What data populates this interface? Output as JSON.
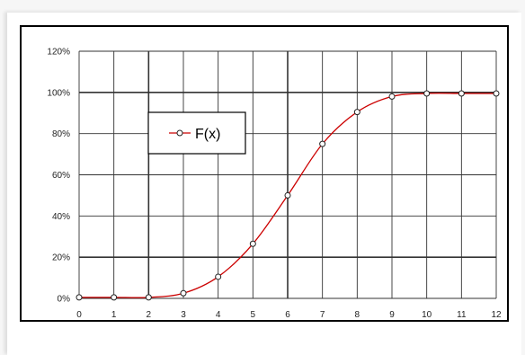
{
  "chart_data": {
    "type": "line",
    "x": [
      0,
      1,
      2,
      3,
      4,
      5,
      6,
      7,
      8,
      9,
      10,
      11,
      12
    ],
    "series": [
      {
        "name": "F(x)",
        "values": [
          0.5,
          0.5,
          0.5,
          2.5,
          10.5,
          26.5,
          50,
          75,
          90.5,
          98,
          99.5,
          99.5,
          99.5
        ]
      }
    ],
    "xlim": [
      0,
      12
    ],
    "ylim": [
      0,
      120
    ],
    "x_ticks": [
      "0",
      "1",
      "2",
      "3",
      "4",
      "5",
      "6",
      "7",
      "8",
      "9",
      "10",
      "11",
      "12"
    ],
    "y_ticks": [
      "0%",
      "20%",
      "40%",
      "60%",
      "80%",
      "100%",
      "120%"
    ],
    "grid": true,
    "legend_position": "upper-left",
    "colors": {
      "line": "#cc0000",
      "marker_fill": "#ffffff",
      "marker_stroke": "#222222",
      "grid": "#333333"
    }
  }
}
